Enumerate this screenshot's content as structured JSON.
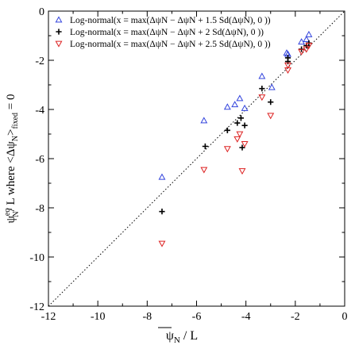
{
  "chart_data": {
    "type": "scatter",
    "xlim": [
      -12,
      0
    ],
    "ylim": [
      -12,
      0
    ],
    "x_ticks": [
      -12,
      -10,
      -8,
      -6,
      -4,
      -2,
      0
    ],
    "y_ticks": [
      -12,
      -10,
      -8,
      -6,
      -4,
      -2,
      0
    ],
    "x_tick_labels": [
      "-12",
      "-10",
      "-8",
      "-6",
      "-4",
      "-2",
      "0"
    ],
    "y_tick_labels": [
      "-12",
      "-10",
      "-8",
      "-6",
      "-4",
      "-2",
      "0"
    ],
    "xlabel": {
      "main": "ψ",
      "sub": "N",
      "rest": " / L"
    },
    "ylabel": {
      "psi": "ψ",
      "sup_eq": "eq",
      "sub_n": "N",
      "mid": "/ L   where   <Δψ",
      "sub_n2": "N",
      "gt": ">",
      "sub_fixed": "fixed",
      "eq": " = 0"
    },
    "legend_position": "top-left",
    "reference_line": {
      "type": "diagonal y=x",
      "style": "dotted"
    },
    "grid": false,
    "series": [
      {
        "name": "Log-normal(x = max(ΔψN − ΔψN + 1.5 Sd(ΔψN), 0 ))",
        "color": "#3344dd",
        "marker": "triangle-up",
        "points": [
          [
            -7.4,
            -6.75
          ],
          [
            -5.7,
            -4.45
          ],
          [
            -4.75,
            -3.9
          ],
          [
            -4.45,
            -3.8
          ],
          [
            -4.25,
            -3.55
          ],
          [
            -4.05,
            -3.95
          ],
          [
            -3.35,
            -2.65
          ],
          [
            -2.95,
            -3.1
          ],
          [
            -2.35,
            -1.7
          ],
          [
            -2.3,
            -1.75
          ],
          [
            -1.75,
            -1.25
          ],
          [
            -1.55,
            -1.15
          ],
          [
            -1.45,
            -0.95
          ]
        ]
      },
      {
        "name": "Log-normal(x = max(ΔψN − ΔψN + 2  Sd(ΔψN), 0 ))",
        "color": "#000000",
        "marker": "plus",
        "points": [
          [
            -7.4,
            -8.15
          ],
          [
            -5.65,
            -5.5
          ],
          [
            -4.75,
            -4.85
          ],
          [
            -4.35,
            -4.55
          ],
          [
            -4.2,
            -4.35
          ],
          [
            -4.15,
            -5.55
          ],
          [
            -4.05,
            -4.65
          ],
          [
            -3.35,
            -3.15
          ],
          [
            -3.0,
            -3.7
          ],
          [
            -2.3,
            -2.05
          ],
          [
            -2.3,
            -1.9
          ],
          [
            -1.75,
            -1.55
          ],
          [
            -1.55,
            -1.4
          ],
          [
            -1.45,
            -1.3
          ]
        ]
      },
      {
        "name": "Log-normal(x = max(ΔψN − ΔψN + 2.5 Sd(ΔψN), 0 ))",
        "color": "#dd2222",
        "marker": "triangle-down",
        "points": [
          [
            -7.4,
            -9.45
          ],
          [
            -5.7,
            -6.45
          ],
          [
            -4.75,
            -5.6
          ],
          [
            -4.35,
            -5.2
          ],
          [
            -4.25,
            -5.0
          ],
          [
            -4.15,
            -6.5
          ],
          [
            -4.05,
            -5.4
          ],
          [
            -3.35,
            -3.5
          ],
          [
            -3.0,
            -4.25
          ],
          [
            -2.3,
            -2.4
          ],
          [
            -2.3,
            -2.2
          ],
          [
            -1.75,
            -1.65
          ],
          [
            -1.55,
            -1.55
          ],
          [
            -1.45,
            -1.4
          ]
        ]
      }
    ]
  }
}
